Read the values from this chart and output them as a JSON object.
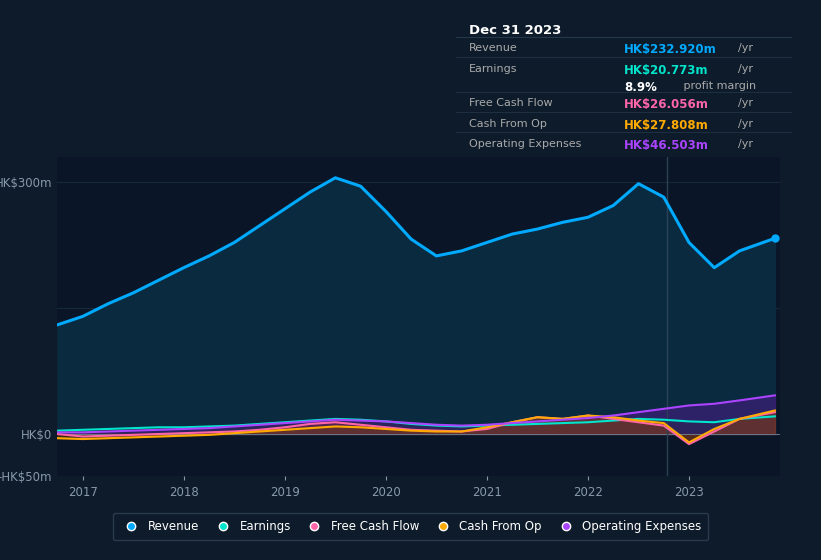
{
  "bg_color": "#0d1b2a",
  "chart_bg": "#0a1628",
  "grid_color": "#1a2e42",
  "axis_label_color": "#8899aa",
  "ylim": [
    -50,
    330
  ],
  "xtick_labels": [
    "2017",
    "2018",
    "2019",
    "2020",
    "2021",
    "2022",
    "2023"
  ],
  "years": [
    2016.75,
    2017.0,
    2017.25,
    2017.5,
    2017.75,
    2018.0,
    2018.25,
    2018.5,
    2018.75,
    2019.0,
    2019.25,
    2019.5,
    2019.75,
    2020.0,
    2020.25,
    2020.5,
    2020.75,
    2021.0,
    2021.25,
    2021.5,
    2021.75,
    2022.0,
    2022.25,
    2022.5,
    2022.75,
    2023.0,
    2023.25,
    2023.5,
    2023.85
  ],
  "revenue": [
    130,
    140,
    155,
    168,
    183,
    198,
    212,
    228,
    248,
    268,
    288,
    305,
    295,
    265,
    232,
    212,
    218,
    228,
    238,
    244,
    252,
    258,
    272,
    298,
    282,
    228,
    198,
    218,
    233
  ],
  "earnings": [
    4,
    5,
    6,
    7,
    8,
    8,
    9,
    10,
    12,
    14,
    16,
    18,
    17,
    15,
    12,
    10,
    9,
    10,
    11,
    12,
    13,
    14,
    16,
    18,
    17,
    15,
    14,
    18,
    21
  ],
  "free_cash_flow": [
    0,
    -3,
    -2,
    -1,
    0,
    1,
    2,
    3,
    5,
    8,
    12,
    14,
    11,
    8,
    5,
    4,
    3,
    6,
    14,
    20,
    18,
    22,
    18,
    14,
    10,
    -12,
    3,
    18,
    26
  ],
  "cash_from_op": [
    -5,
    -6,
    -5,
    -4,
    -3,
    -2,
    -1,
    1,
    3,
    5,
    7,
    9,
    8,
    6,
    4,
    3,
    3,
    8,
    14,
    20,
    18,
    22,
    20,
    16,
    13,
    -10,
    6,
    18,
    28
  ],
  "operating_expenses": [
    2,
    2,
    3,
    4,
    5,
    6,
    7,
    9,
    11,
    13,
    15,
    17,
    16,
    15,
    13,
    11,
    10,
    11,
    13,
    15,
    17,
    19,
    22,
    26,
    30,
    34,
    36,
    40,
    46
  ],
  "revenue_color": "#00aaff",
  "earnings_color": "#00e5cc",
  "fcf_color": "#ff66aa",
  "cashfromop_color": "#ffaa00",
  "opex_color": "#aa44ff",
  "legend": [
    {
      "label": "Revenue",
      "color": "#00aaff"
    },
    {
      "label": "Earnings",
      "color": "#00e5cc"
    },
    {
      "label": "Free Cash Flow",
      "color": "#ff66aa"
    },
    {
      "label": "Cash From Op",
      "color": "#ffaa00"
    },
    {
      "label": "Operating Expenses",
      "color": "#aa44ff"
    }
  ]
}
